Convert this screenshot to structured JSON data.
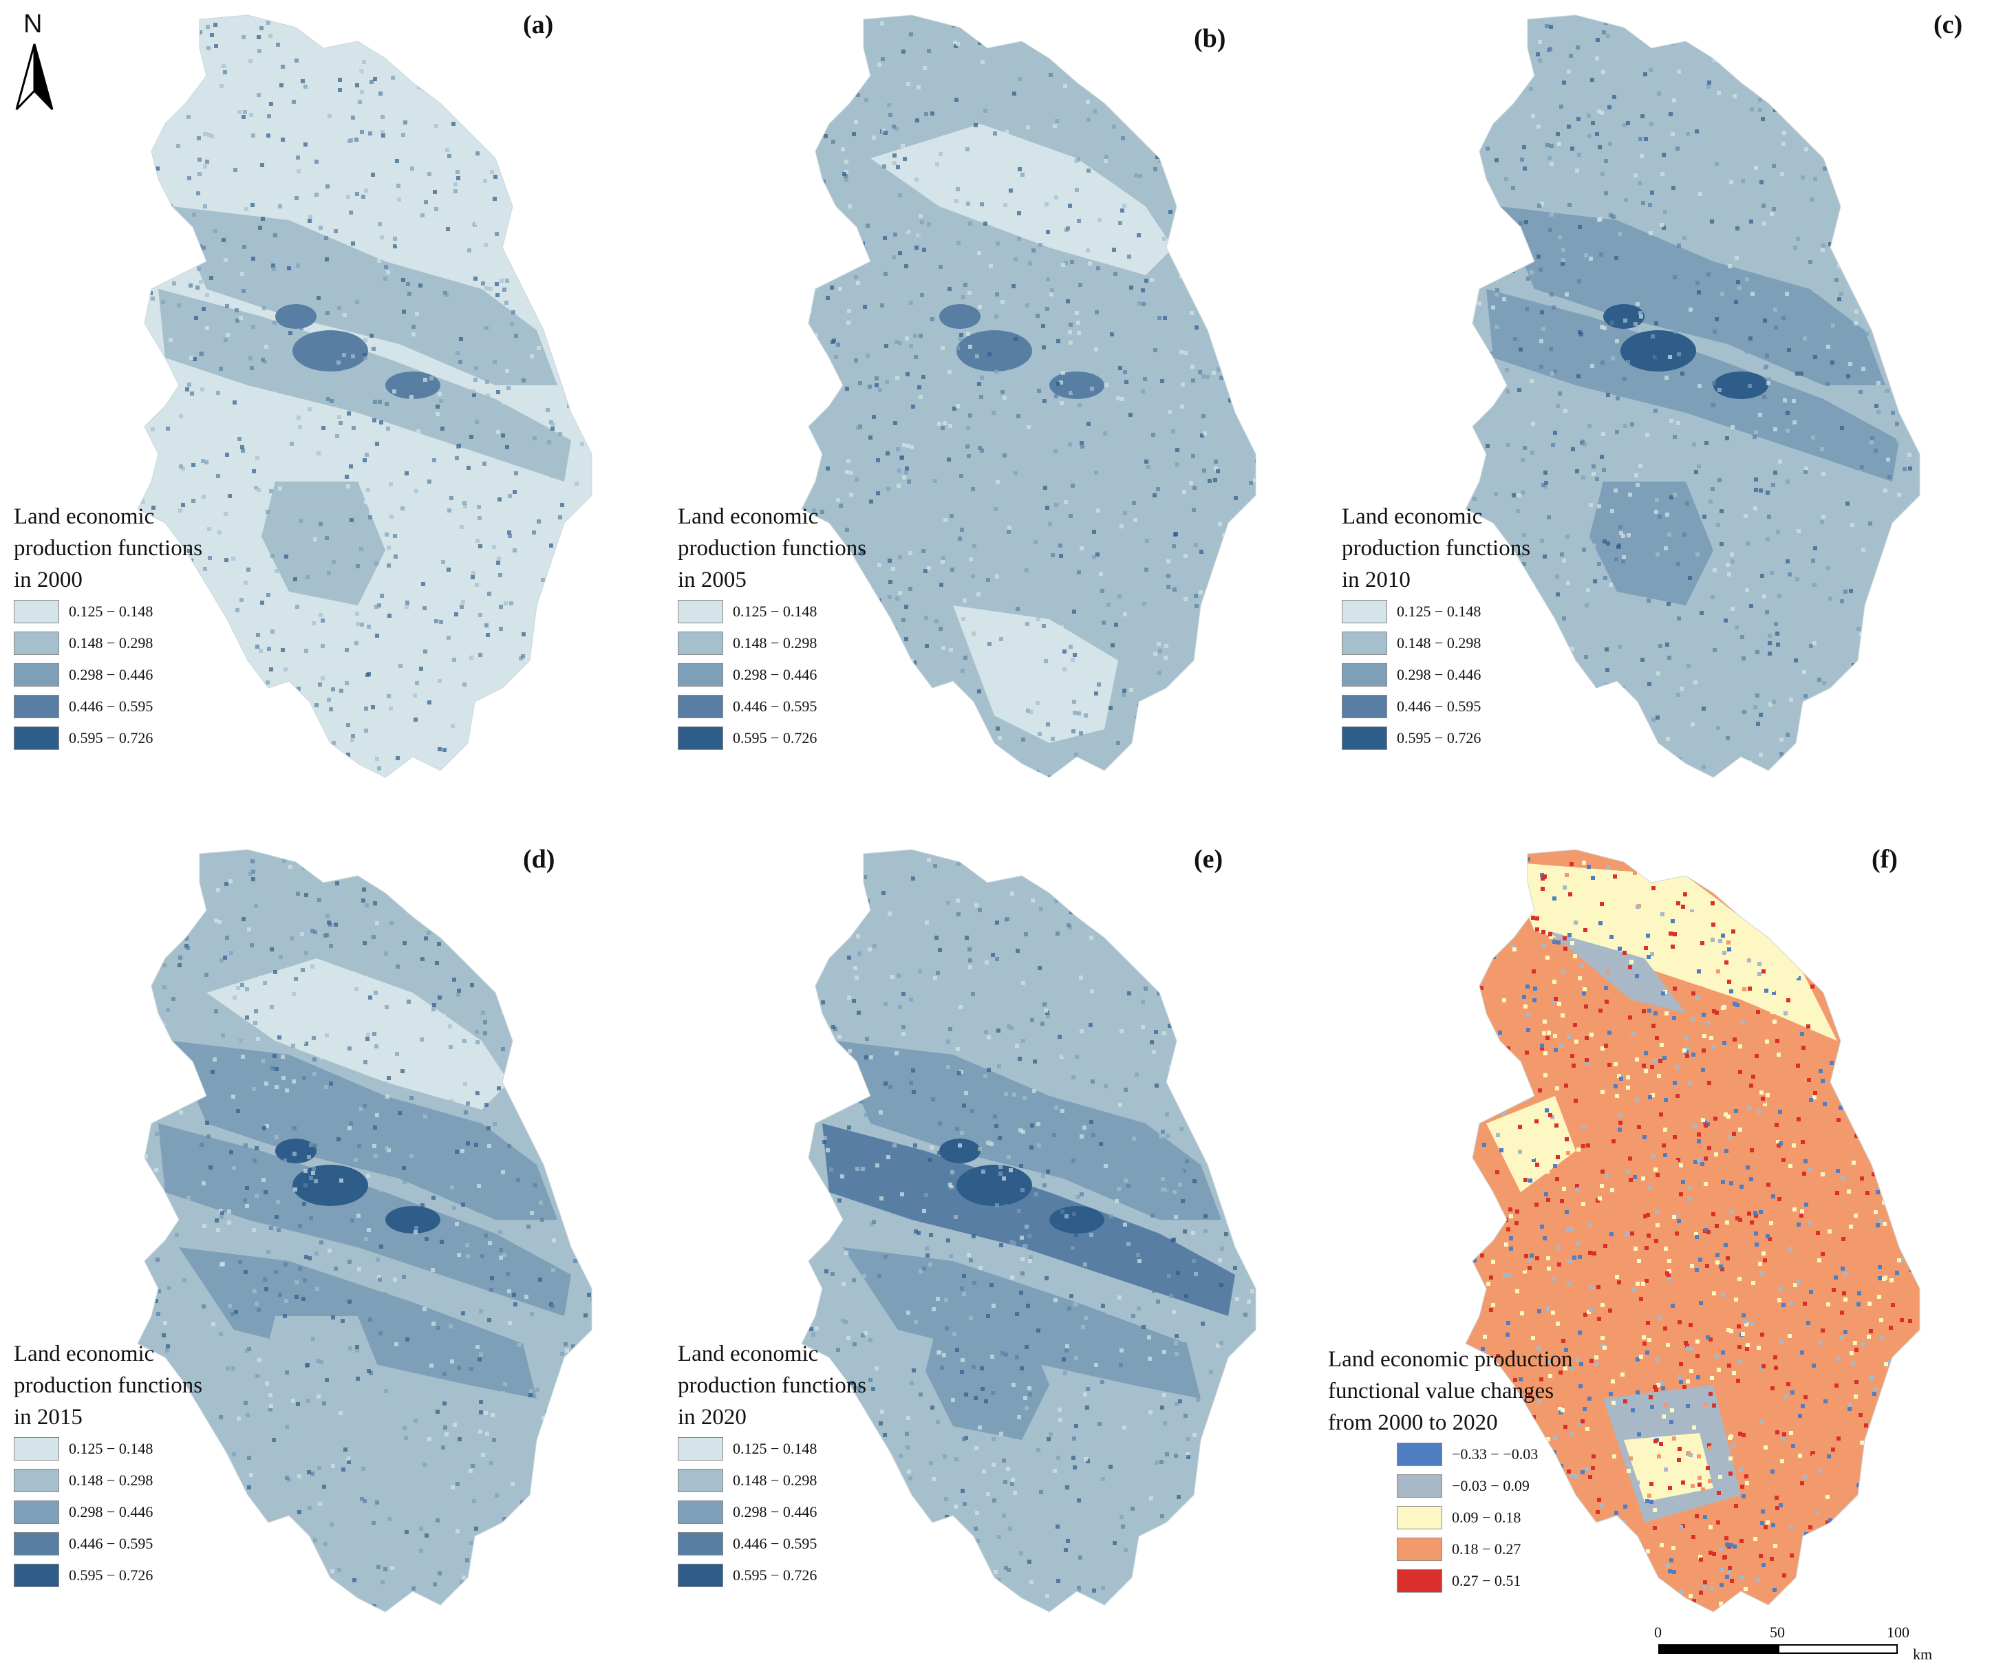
{
  "north_arrow": {
    "letter": "N"
  },
  "legend_classes": {
    "items": [
      {
        "label": "0.125 − 0.148",
        "color": "#d4e4e8"
      },
      {
        "label": "0.148 − 0.298",
        "color": "#a6bfcc"
      },
      {
        "label": "0.298 − 0.446",
        "color": "#7e9fb8"
      },
      {
        "label": "0.446 − 0.595",
        "color": "#587fa3"
      },
      {
        "label": "0.595 − 0.726",
        "color": "#2f5d8a"
      }
    ]
  },
  "panels": [
    {
      "letter": "(a)",
      "title": "Land economic\nproduction functions\nin 2000"
    },
    {
      "letter": "(b)",
      "title": "Land economic\nproduction functions\nin 2005"
    },
    {
      "letter": "(c)",
      "title": "Land economic\nproduction functions\nin 2010"
    },
    {
      "letter": "(d)",
      "title": "Land economic\nproduction functions\nin 2015"
    },
    {
      "letter": "(e)",
      "title": "Land economic\nproduction functions\nin 2020"
    },
    {
      "letter": "(f)",
      "title": "Land economic production\nfunctional value changes\nfrom 2000 to 2020"
    }
  ],
  "change_legend": {
    "items": [
      {
        "label": "−0.33 − −0.03",
        "color": "#4f7ec2"
      },
      {
        "label": "−0.03 − 0.09",
        "color": "#a9b8c6"
      },
      {
        "label": "0.09 − 0.18",
        "color": "#fdf7c3"
      },
      {
        "label": "0.18 − 0.27",
        "color": "#f39a6d"
      },
      {
        "label": "0.27 − 0.51",
        "color": "#d9302b"
      }
    ]
  },
  "scale_bar": {
    "ticks": [
      "0",
      "50",
      "100"
    ],
    "unit": "km"
  }
}
